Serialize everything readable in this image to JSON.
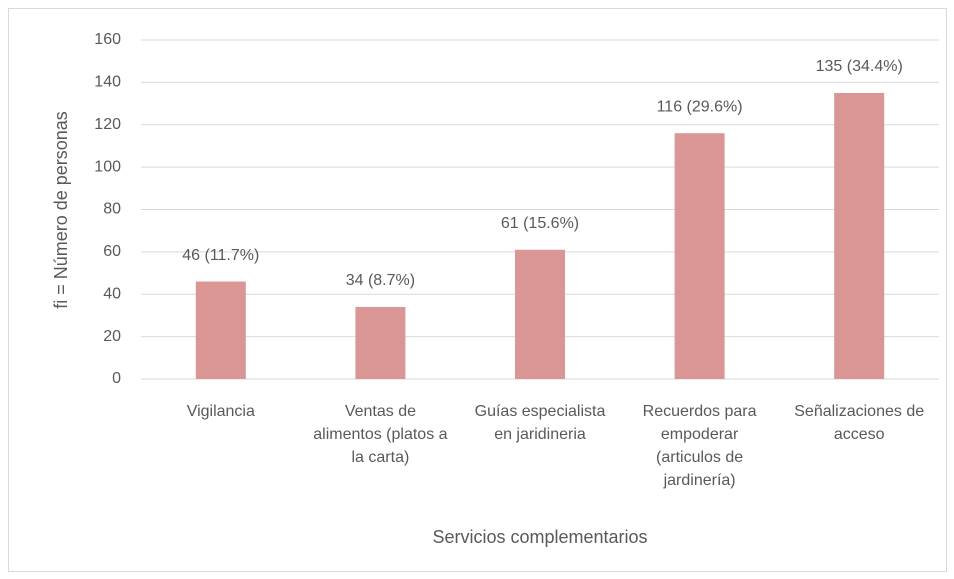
{
  "chart_data": {
    "type": "bar",
    "categories": [
      "Vigilancia",
      "Ventas de alimentos (platos a la carta)",
      "Guías especialista en jaridineria",
      "Recuerdos para empoderar (articulos de jardinería)",
      "Señalizaciones de acceso"
    ],
    "values": [
      46,
      34,
      61,
      116,
      135
    ],
    "value_labels": [
      "46 (11.7%)",
      "34 (8.7%)",
      "61 (15.6%)",
      "116 (29.6%)",
      "135 (34.4%)"
    ],
    "color": "#d99694",
    "xlabel": "Servicios complementarios",
    "ylabel": "fi = Número de personas",
    "ylim": [
      0,
      160
    ],
    "yticks": [
      0,
      20,
      40,
      60,
      80,
      100,
      120,
      140,
      160
    ],
    "grid": true
  }
}
